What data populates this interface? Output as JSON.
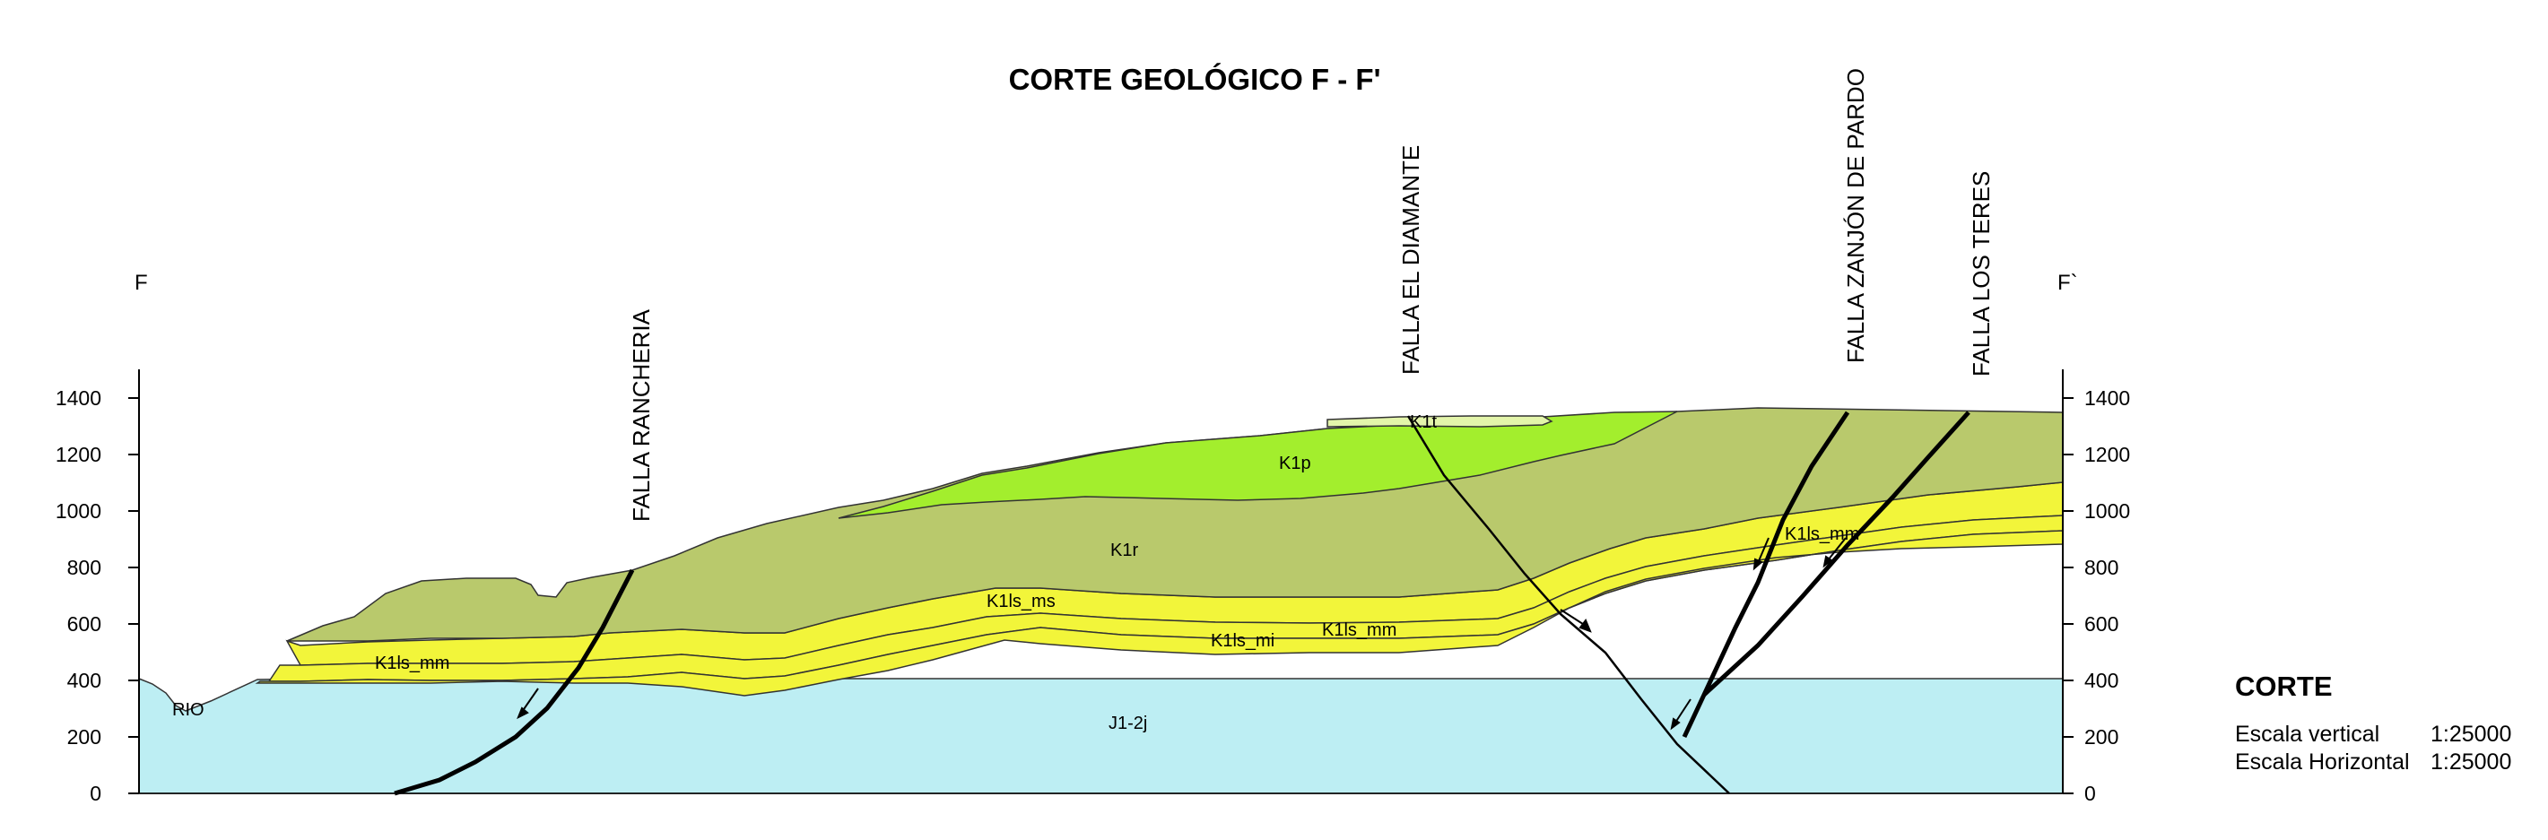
{
  "title": "CORTE GEOLÓGICO F - F'",
  "endpoints": {
    "left": "F",
    "right": "F`"
  },
  "axis": {
    "ticks": [
      "0",
      "200",
      "400",
      "600",
      "800",
      "1000",
      "1200",
      "1400"
    ]
  },
  "faults": [
    "FALLA RANCHERIA",
    "FALLA EL DIAMANTE",
    "FALLA ZANJÓN DE PARDO",
    "FALLA LOS TERES"
  ],
  "units": {
    "k1t": "K1t",
    "k1p": "K1p",
    "k1r": "K1r",
    "k1ls_ms": "K1ls_ms",
    "k1ls_mm_left": "K1ls_mm",
    "k1ls_mm_mid": "K1ls_mm",
    "k1ls_mm_right": "K1ls_mm",
    "k1ls_mi": "K1ls_mi",
    "j12j": "J1-2j",
    "rio": "RIO"
  },
  "colors": {
    "j12j": "#bdeef3",
    "k1lsi": "#f2f53a",
    "k1lsm": "#f7f99a",
    "k1r": "#b9c96c",
    "k1p": "#a3ee2d",
    "k1t": "#e3f5aa",
    "fault": "#000000"
  },
  "legend": {
    "title": "CORTE",
    "rows": [
      {
        "label": "Escala vertical",
        "value": "1:25000"
      },
      {
        "label": "Escala Horizontal",
        "value": "1:25000"
      }
    ]
  }
}
